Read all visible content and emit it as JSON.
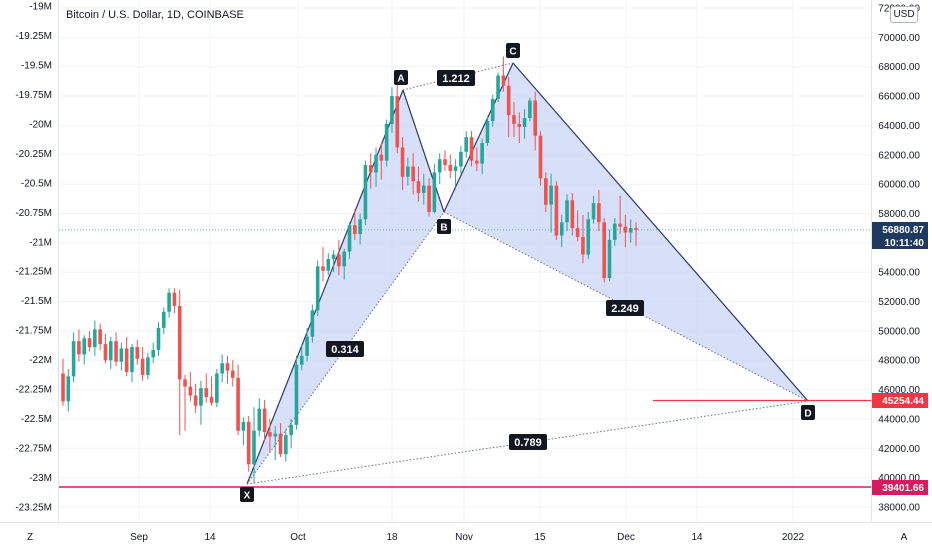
{
  "chart_data": {
    "type": "candlestick",
    "title": "Bitcoin / U.S. Dollar, 1D, COINBASE",
    "currency_badge": "USD",
    "left_axis": {
      "ticks": [
        "-19M",
        "-19.25M",
        "-19.5M",
        "-19.75M",
        "-20M",
        "-20.25M",
        "-20.5M",
        "-20.75M",
        "-21M",
        "-21.25M",
        "-21.5M",
        "-21.75M",
        "-22M",
        "-22.25M",
        "-22.5M",
        "-22.75M",
        "-23M",
        "-23.25M"
      ],
      "range": [
        -23.33,
        -19.0
      ]
    },
    "right_axis": {
      "ticks": [
        "72000.00",
        "70000.00",
        "68000.00",
        "66000.00",
        "64000.00",
        "62000.00",
        "60000.00",
        "58000.00",
        "56000.00",
        "54000.00",
        "52000.00",
        "50000.00",
        "48000.00",
        "46000.00",
        "44000.00",
        "42000.00",
        "40000.00",
        "38000.00"
      ],
      "range": [
        36800,
        72400
      ]
    },
    "x_axis": {
      "ticks": [
        "Sep",
        "14",
        "Oct",
        "18",
        "Nov",
        "15",
        "Dec",
        "14",
        "2022"
      ]
    },
    "colors": {
      "up": "#26a69a",
      "down": "#ef5350",
      "harmonic_fill": "#c9d4f7",
      "harmonic_line": "#2b3a67",
      "last_price_tag": "#1e3a5f",
      "target_line": "#f23645",
      "support_line": "#d81b60"
    },
    "harmonic_points": [
      {
        "label": "X",
        "price": 39600
      },
      {
        "label": "A",
        "price": 66800
      },
      {
        "label": "B",
        "price": 58000
      },
      {
        "label": "C",
        "price": 68700
      },
      {
        "label": "D",
        "price": 45254
      }
    ],
    "ratios": [
      "0.314",
      "1.212",
      "2.249",
      "0.789"
    ],
    "price_tags": {
      "last": "56880.87",
      "countdown": "10:11:40",
      "target": "45254.44",
      "support": "39401.66"
    },
    "corner_buttons": {
      "left": "Z",
      "right": "A"
    },
    "candles": [
      {
        "o": 47100,
        "h": 48100,
        "l": 44900,
        "c": 45200
      },
      {
        "o": 45200,
        "h": 47400,
        "l": 44500,
        "c": 46900
      },
      {
        "o": 46900,
        "h": 49900,
        "l": 46500,
        "c": 49300
      },
      {
        "o": 49300,
        "h": 50100,
        "l": 47900,
        "c": 48400
      },
      {
        "o": 48400,
        "h": 49700,
        "l": 47700,
        "c": 49500
      },
      {
        "o": 49500,
        "h": 50000,
        "l": 48600,
        "c": 48900
      },
      {
        "o": 48900,
        "h": 50700,
        "l": 48300,
        "c": 50100
      },
      {
        "o": 50100,
        "h": 50500,
        "l": 48700,
        "c": 49100
      },
      {
        "o": 49100,
        "h": 49800,
        "l": 47800,
        "c": 48000
      },
      {
        "o": 48000,
        "h": 49600,
        "l": 47400,
        "c": 49300
      },
      {
        "o": 49300,
        "h": 49900,
        "l": 47600,
        "c": 47900
      },
      {
        "o": 47900,
        "h": 49200,
        "l": 47300,
        "c": 48800
      },
      {
        "o": 48800,
        "h": 49600,
        "l": 46900,
        "c": 47200
      },
      {
        "o": 47200,
        "h": 49100,
        "l": 46500,
        "c": 48900
      },
      {
        "o": 48900,
        "h": 49400,
        "l": 47700,
        "c": 48100
      },
      {
        "o": 48100,
        "h": 48900,
        "l": 46600,
        "c": 47000
      },
      {
        "o": 47000,
        "h": 48500,
        "l": 46700,
        "c": 48200
      },
      {
        "o": 48200,
        "h": 49200,
        "l": 47800,
        "c": 48700
      },
      {
        "o": 48700,
        "h": 50600,
        "l": 48300,
        "c": 50200
      },
      {
        "o": 50200,
        "h": 51600,
        "l": 49800,
        "c": 51300
      },
      {
        "o": 51300,
        "h": 52900,
        "l": 50900,
        "c": 52600
      },
      {
        "o": 52600,
        "h": 52900,
        "l": 51200,
        "c": 51700
      },
      {
        "o": 51700,
        "h": 52800,
        "l": 42900,
        "c": 46700
      },
      {
        "o": 46700,
        "h": 47000,
        "l": 43200,
        "c": 46200
      },
      {
        "o": 46200,
        "h": 47200,
        "l": 45200,
        "c": 45600
      },
      {
        "o": 45600,
        "h": 46400,
        "l": 44400,
        "c": 44900
      },
      {
        "o": 44900,
        "h": 46600,
        "l": 43600,
        "c": 46100
      },
      {
        "o": 46100,
        "h": 47100,
        "l": 45100,
        "c": 45500
      },
      {
        "o": 45500,
        "h": 46900,
        "l": 44900,
        "c": 45100
      },
      {
        "o": 45100,
        "h": 47400,
        "l": 44800,
        "c": 47100
      },
      {
        "o": 47100,
        "h": 48400,
        "l": 46500,
        "c": 47800
      },
      {
        "o": 47800,
        "h": 48300,
        "l": 46400,
        "c": 47300
      },
      {
        "o": 47300,
        "h": 48000,
        "l": 46200,
        "c": 46800
      },
      {
        "o": 46800,
        "h": 47700,
        "l": 42900,
        "c": 43200
      },
      {
        "o": 43200,
        "h": 44100,
        "l": 42200,
        "c": 43800
      },
      {
        "o": 43800,
        "h": 44200,
        "l": 40400,
        "c": 40900
      },
      {
        "o": 40900,
        "h": 44800,
        "l": 39600,
        "c": 43200
      },
      {
        "o": 43200,
        "h": 45400,
        "l": 42800,
        "c": 44700
      },
      {
        "o": 44700,
        "h": 45300,
        "l": 42500,
        "c": 43100
      },
      {
        "o": 43100,
        "h": 44000,
        "l": 41700,
        "c": 42800
      },
      {
        "o": 42800,
        "h": 43500,
        "l": 41200,
        "c": 43000
      },
      {
        "o": 43000,
        "h": 43700,
        "l": 41400,
        "c": 41600
      },
      {
        "o": 41600,
        "h": 43300,
        "l": 41100,
        "c": 42900
      },
      {
        "o": 42900,
        "h": 44000,
        "l": 42000,
        "c": 43600
      },
      {
        "o": 43600,
        "h": 48300,
        "l": 43300,
        "c": 47700
      },
      {
        "o": 47700,
        "h": 49100,
        "l": 47300,
        "c": 48300
      },
      {
        "o": 48300,
        "h": 50200,
        "l": 47900,
        "c": 49600
      },
      {
        "o": 49600,
        "h": 51800,
        "l": 49200,
        "c": 51400
      },
      {
        "o": 51400,
        "h": 54800,
        "l": 51000,
        "c": 54400
      },
      {
        "o": 54400,
        "h": 55700,
        "l": 53400,
        "c": 54100
      },
      {
        "o": 54100,
        "h": 55300,
        "l": 53800,
        "c": 54900
      },
      {
        "o": 54900,
        "h": 55500,
        "l": 54000,
        "c": 55200
      },
      {
        "o": 55200,
        "h": 56200,
        "l": 53800,
        "c": 54400
      },
      {
        "o": 54400,
        "h": 55600,
        "l": 53500,
        "c": 55400
      },
      {
        "o": 55400,
        "h": 57400,
        "l": 54900,
        "c": 57200
      },
      {
        "o": 57200,
        "h": 58300,
        "l": 56200,
        "c": 56600
      },
      {
        "o": 56600,
        "h": 58000,
        "l": 55900,
        "c": 57600
      },
      {
        "o": 57600,
        "h": 61600,
        "l": 57200,
        "c": 61300
      },
      {
        "o": 61300,
        "h": 62100,
        "l": 59700,
        "c": 60800
      },
      {
        "o": 60800,
        "h": 62500,
        "l": 59800,
        "c": 62000
      },
      {
        "o": 62000,
        "h": 62800,
        "l": 60300,
        "c": 61600
      },
      {
        "o": 61600,
        "h": 64400,
        "l": 61200,
        "c": 64100
      },
      {
        "o": 64100,
        "h": 66600,
        "l": 63500,
        "c": 66000
      },
      {
        "o": 66000,
        "h": 66900,
        "l": 62100,
        "c": 62500
      },
      {
        "o": 62500,
        "h": 63200,
        "l": 59600,
        "c": 60500
      },
      {
        "o": 60500,
        "h": 61800,
        "l": 59900,
        "c": 61200
      },
      {
        "o": 61200,
        "h": 62100,
        "l": 59300,
        "c": 60200
      },
      {
        "o": 60200,
        "h": 61200,
        "l": 58800,
        "c": 59400
      },
      {
        "o": 59400,
        "h": 60700,
        "l": 58600,
        "c": 59900
      },
      {
        "o": 59900,
        "h": 60400,
        "l": 57800,
        "c": 58100
      },
      {
        "o": 58100,
        "h": 61400,
        "l": 58000,
        "c": 60800
      },
      {
        "o": 60800,
        "h": 62100,
        "l": 60000,
        "c": 61700
      },
      {
        "o": 61700,
        "h": 62300,
        "l": 60900,
        "c": 61300
      },
      {
        "o": 61300,
        "h": 62000,
        "l": 60400,
        "c": 60900
      },
      {
        "o": 60900,
        "h": 61700,
        "l": 59900,
        "c": 61200
      },
      {
        "o": 61200,
        "h": 62600,
        "l": 60700,
        "c": 62200
      },
      {
        "o": 62200,
        "h": 63600,
        "l": 61800,
        "c": 63200
      },
      {
        "o": 63200,
        "h": 63600,
        "l": 61200,
        "c": 61600
      },
      {
        "o": 61600,
        "h": 62500,
        "l": 60900,
        "c": 61400
      },
      {
        "o": 61400,
        "h": 63100,
        "l": 60700,
        "c": 62800
      },
      {
        "o": 62800,
        "h": 64600,
        "l": 62600,
        "c": 64300
      },
      {
        "o": 64300,
        "h": 66100,
        "l": 63900,
        "c": 65800
      },
      {
        "o": 65800,
        "h": 67600,
        "l": 65600,
        "c": 67400
      },
      {
        "o": 67400,
        "h": 68700,
        "l": 66300,
        "c": 66700
      },
      {
        "o": 66700,
        "h": 67300,
        "l": 63200,
        "c": 64700
      },
      {
        "o": 64700,
        "h": 65600,
        "l": 63200,
        "c": 64100
      },
      {
        "o": 64100,
        "h": 64900,
        "l": 62800,
        "c": 63900
      },
      {
        "o": 63900,
        "h": 65100,
        "l": 63100,
        "c": 64500
      },
      {
        "o": 64500,
        "h": 65900,
        "l": 64300,
        "c": 65700
      },
      {
        "o": 65700,
        "h": 66300,
        "l": 62300,
        "c": 63300
      },
      {
        "o": 63300,
        "h": 63600,
        "l": 59900,
        "c": 60400
      },
      {
        "o": 60400,
        "h": 60800,
        "l": 58100,
        "c": 58600
      },
      {
        "o": 58600,
        "h": 60700,
        "l": 56700,
        "c": 59900
      },
      {
        "o": 59900,
        "h": 60200,
        "l": 56200,
        "c": 56500
      },
      {
        "o": 56500,
        "h": 57900,
        "l": 55700,
        "c": 57400
      },
      {
        "o": 57400,
        "h": 59300,
        "l": 56800,
        "c": 58900
      },
      {
        "o": 58900,
        "h": 59400,
        "l": 56500,
        "c": 57000
      },
      {
        "o": 57000,
        "h": 58200,
        "l": 56100,
        "c": 56400
      },
      {
        "o": 56400,
        "h": 57900,
        "l": 54600,
        "c": 55200
      },
      {
        "o": 55200,
        "h": 58100,
        "l": 54900,
        "c": 57600
      },
      {
        "o": 57600,
        "h": 59200,
        "l": 57300,
        "c": 58700
      },
      {
        "o": 58700,
        "h": 59600,
        "l": 56800,
        "c": 57400
      },
      {
        "o": 57400,
        "h": 57700,
        "l": 53300,
        "c": 53600
      },
      {
        "o": 53600,
        "h": 56900,
        "l": 53400,
        "c": 56200
      },
      {
        "o": 56200,
        "h": 57700,
        "l": 55800,
        "c": 57300
      },
      {
        "o": 57300,
        "h": 59200,
        "l": 56600,
        "c": 57100
      },
      {
        "o": 57100,
        "h": 57900,
        "l": 55700,
        "c": 56700
      },
      {
        "o": 56700,
        "h": 57600,
        "l": 56000,
        "c": 57000
      },
      {
        "o": 57000,
        "h": 57400,
        "l": 55800,
        "c": 56880
      }
    ]
  }
}
